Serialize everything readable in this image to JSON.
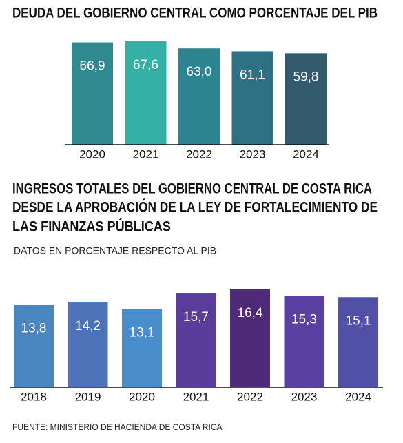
{
  "chart_data": [
    {
      "type": "bar",
      "title": "DEUDA DEL GOBIERNO CENTRAL COMO PORCENTAJE DEL PIB",
      "categories": [
        "2020",
        "2021",
        "2022",
        "2023",
        "2024"
      ],
      "values": [
        66.9,
        67.6,
        63.0,
        61.1,
        59.8
      ],
      "value_labels": [
        "66,9",
        "67,6",
        "63,0",
        "61,1",
        "59,8"
      ],
      "colors": [
        "#2e8a8f",
        "#35b0a6",
        "#2d8491",
        "#2f7184",
        "#345a6e"
      ],
      "ylim": [
        0,
        67.6
      ]
    },
    {
      "type": "bar",
      "title": [
        "INGRESOS TOTALES DEL GOBIERNO CENTRAL DE COSTA RICA",
        "DESDE LA APROBACIÓN DE LA LEY DE FORTALECIMIENTO DE",
        "LAS FINANZAS PÚBLICAS"
      ],
      "subtitle": "DATOS EN PORCENTAJE RESPECTO AL PIB",
      "categories": [
        "2018",
        "2019",
        "2020",
        "2021",
        "2022",
        "2023",
        "2024"
      ],
      "values": [
        13.8,
        14.2,
        13.1,
        15.7,
        16.4,
        15.3,
        15.1
      ],
      "value_labels": [
        "13,8",
        "14,2",
        "13,1",
        "15,7",
        "16,4",
        "15,3",
        "15,1"
      ],
      "colors": [
        "#4a86c0",
        "#4d72b8",
        "#4a8dcb",
        "#5a3d9b",
        "#4f2a78",
        "#5b40a1",
        "#5050a6"
      ],
      "ylim": [
        0,
        16.4
      ]
    }
  ],
  "source": "FUENTE: MINISTERIO DE HACIENDA DE COSTA RICA"
}
